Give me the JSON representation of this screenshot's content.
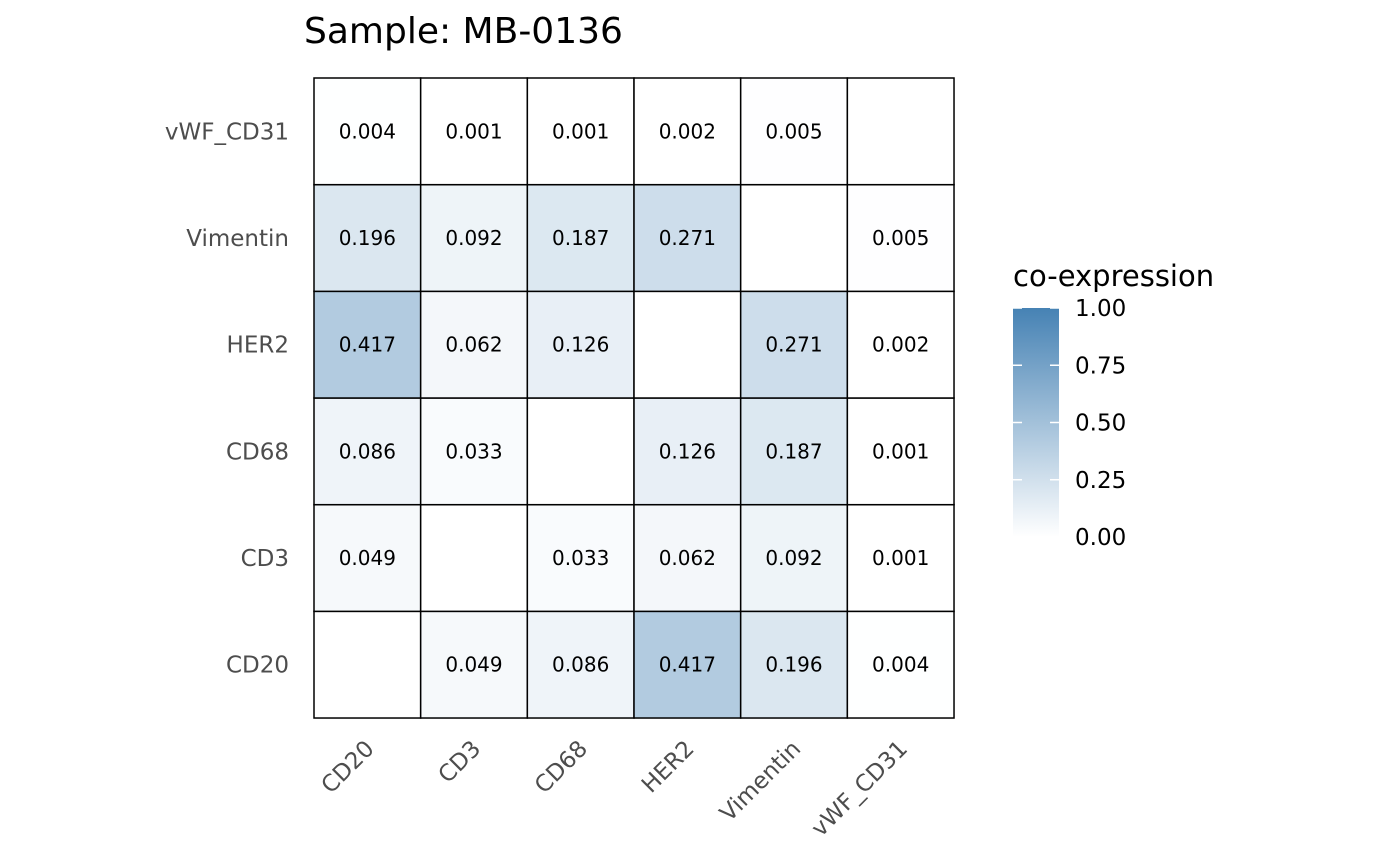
{
  "chart_data": {
    "type": "heatmap",
    "title": "Sample: MB-0136",
    "x_categories": [
      "CD20",
      "CD3",
      "CD68",
      "HER2",
      "Vimentin",
      "vWF_CD31"
    ],
    "y_categories": [
      "CD20",
      "CD3",
      "CD68",
      "HER2",
      "Vimentin",
      "vWF_CD31"
    ],
    "values": [
      [
        null,
        0.049,
        0.086,
        0.417,
        0.196,
        0.004
      ],
      [
        0.049,
        null,
        0.033,
        0.062,
        0.092,
        0.001
      ],
      [
        0.086,
        0.033,
        null,
        0.126,
        0.187,
        0.001
      ],
      [
        0.417,
        0.062,
        0.126,
        null,
        0.271,
        0.002
      ],
      [
        0.196,
        0.092,
        0.187,
        0.271,
        null,
        0.005
      ],
      [
        0.004,
        0.001,
        0.001,
        0.002,
        0.005,
        null
      ]
    ],
    "value_labels": [
      [
        "",
        "0.049",
        "0.086",
        "0.417",
        "0.196",
        "0.004"
      ],
      [
        "0.049",
        "",
        "0.033",
        "0.062",
        "0.092",
        "0.001"
      ],
      [
        "0.086",
        "0.033",
        "",
        "0.126",
        "0.187",
        "0.001"
      ],
      [
        "0.417",
        "0.062",
        "0.126",
        "",
        "0.271",
        "0.002"
      ],
      [
        "0.196",
        "0.092",
        "0.187",
        "0.271",
        "",
        "0.005"
      ],
      [
        "0.004",
        "0.001",
        "0.001",
        "0.002",
        "0.005",
        ""
      ]
    ],
    "color_scale": {
      "low": "#ffffff",
      "high": "#4682b4",
      "domain": [
        0,
        1
      ]
    },
    "legend": {
      "title": "co-expression",
      "ticks": [
        1.0,
        0.75,
        0.5,
        0.25,
        0.0
      ],
      "tick_labels": [
        "1.00",
        "0.75",
        "0.50",
        "0.25",
        "0.00"
      ],
      "placement": "right"
    },
    "grid": false
  }
}
